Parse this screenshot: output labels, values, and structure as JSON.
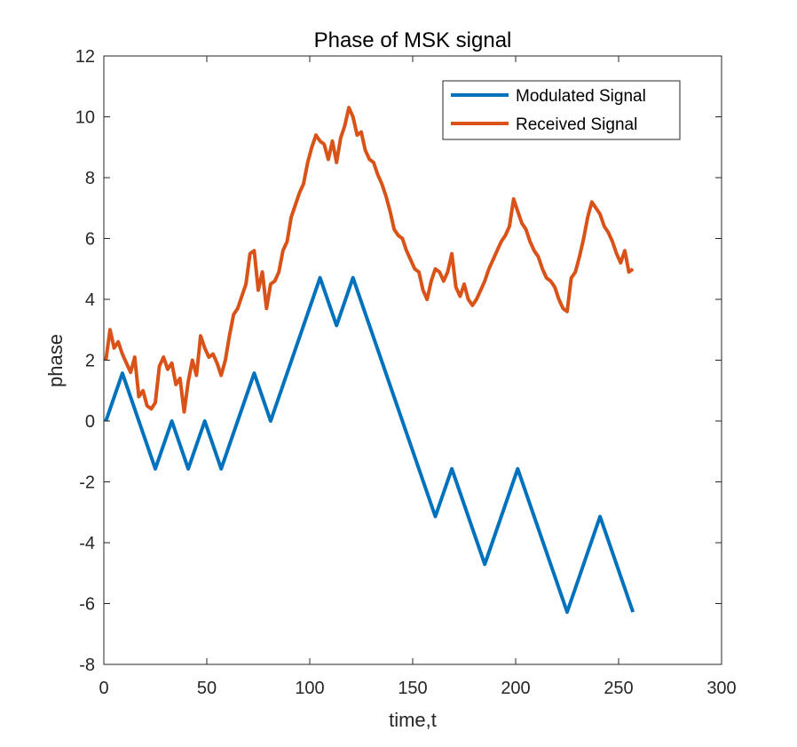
{
  "chart_data": {
    "type": "line",
    "title": "Phase of MSK signal",
    "xlabel": "time,t",
    "ylabel": "phase",
    "xlim": [
      0,
      300
    ],
    "ylim": [
      -8,
      12
    ],
    "xticks": [
      0,
      50,
      100,
      150,
      200,
      250,
      300
    ],
    "yticks": [
      -8,
      -6,
      -4,
      -2,
      0,
      2,
      4,
      6,
      8,
      10,
      12
    ],
    "xtick_labels": [
      "0",
      "50",
      "100",
      "150",
      "200",
      "250",
      "300"
    ],
    "ytick_labels": [
      "-8",
      "-6",
      "-4",
      "-2",
      "0",
      "2",
      "4",
      "6",
      "8",
      "10",
      "12"
    ],
    "grid": false,
    "legend_position": "top-right",
    "series": [
      {
        "name": "Modulated Signal",
        "color": "#0072BD",
        "x": [
          1,
          9,
          25,
          33,
          41,
          49,
          57,
          73,
          81,
          105,
          113,
          121,
          161,
          169,
          185,
          201,
          225,
          241,
          257
        ],
        "y": [
          0,
          1.57,
          -1.57,
          0,
          -1.57,
          0,
          -1.57,
          1.57,
          0,
          4.71,
          3.14,
          4.71,
          -3.14,
          -1.57,
          -4.71,
          -1.57,
          -6.28,
          -3.14,
          -6.28
        ]
      },
      {
        "name": "Received Signal",
        "color": "#D95319",
        "x": [
          1,
          3,
          5,
          7,
          9,
          11,
          13,
          15,
          17,
          19,
          21,
          23,
          25,
          27,
          29,
          31,
          33,
          35,
          37,
          39,
          41,
          43,
          45,
          47,
          49,
          51,
          53,
          55,
          57,
          59,
          61,
          63,
          65,
          67,
          69,
          71,
          73,
          75,
          77,
          79,
          81,
          83,
          85,
          87,
          89,
          91,
          93,
          95,
          97,
          99,
          101,
          103,
          105,
          107,
          109,
          111,
          113,
          115,
          117,
          119,
          121,
          123,
          125,
          127,
          129,
          131,
          133,
          135,
          137,
          139,
          141,
          143,
          145,
          147,
          149,
          151,
          153,
          155,
          157,
          159,
          161,
          163,
          165,
          167,
          169,
          171,
          173,
          175,
          177,
          179,
          181,
          183,
          185,
          187,
          189,
          191,
          193,
          195,
          197,
          199,
          201,
          203,
          205,
          207,
          209,
          211,
          213,
          215,
          217,
          219,
          221,
          223,
          225,
          227,
          229,
          231,
          233,
          235,
          237,
          239,
          241,
          243,
          245,
          247,
          249,
          251,
          253,
          255,
          257
        ],
        "y": [
          2.0,
          3.0,
          2.4,
          2.6,
          2.2,
          1.9,
          1.6,
          2.1,
          0.8,
          1.0,
          0.5,
          0.4,
          0.6,
          1.8,
          2.1,
          1.7,
          1.9,
          1.2,
          1.4,
          0.3,
          1.3,
          2.0,
          1.5,
          2.8,
          2.4,
          2.1,
          2.2,
          1.9,
          1.5,
          2.0,
          2.8,
          3.5,
          3.7,
          4.1,
          4.5,
          5.5,
          5.6,
          4.3,
          4.9,
          3.7,
          4.5,
          4.6,
          4.9,
          5.6,
          5.9,
          6.7,
          7.1,
          7.5,
          7.8,
          8.5,
          9.0,
          9.4,
          9.2,
          9.1,
          8.6,
          9.2,
          8.5,
          9.3,
          9.7,
          10.3,
          10.0,
          9.4,
          9.5,
          8.9,
          8.6,
          8.5,
          8.1,
          7.8,
          7.4,
          6.9,
          6.3,
          6.1,
          6.0,
          5.6,
          5.3,
          5.0,
          4.9,
          4.3,
          4.0,
          4.6,
          5.0,
          4.9,
          4.6,
          4.9,
          5.5,
          4.4,
          4.1,
          4.5,
          4.0,
          3.8,
          4.0,
          4.3,
          4.6,
          5.0,
          5.3,
          5.6,
          5.9,
          6.1,
          6.4,
          7.3,
          6.9,
          6.5,
          6.3,
          5.9,
          5.6,
          5.4,
          5.0,
          4.7,
          4.6,
          4.4,
          4.0,
          3.7,
          3.6,
          4.7,
          4.9,
          5.4,
          6.0,
          6.7,
          7.2,
          7.0,
          6.8,
          6.4,
          6.2,
          5.9,
          5.5,
          5.2,
          5.6,
          4.9,
          5.0
        ]
      }
    ]
  }
}
